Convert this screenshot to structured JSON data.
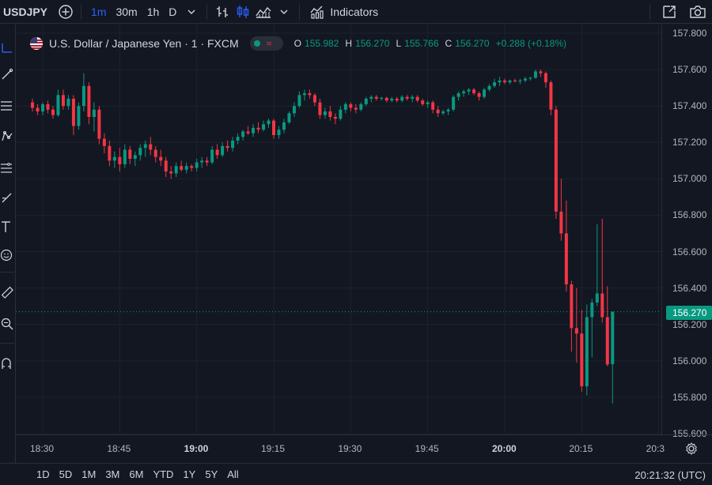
{
  "toolbar": {
    "symbol": "USDJPY",
    "intervals": [
      "1m",
      "30m",
      "1h",
      "D"
    ],
    "active_interval": "1m",
    "indicators_label": "Indicators"
  },
  "legend": {
    "title": "U.S. Dollar / Japanese Yen · 1 · FXCM",
    "open_key": "O",
    "open": "155.982",
    "high_key": "H",
    "high": "156.270",
    "low_key": "L",
    "low": "155.766",
    "close_key": "C",
    "close": "156.270",
    "change": "+0.288 (+0.18%)"
  },
  "price_scale": {
    "labels": [
      "157.800",
      "157.600",
      "157.400",
      "157.200",
      "157.000",
      "156.800",
      "156.600",
      "156.400",
      "156.200",
      "156.000",
      "155.800",
      "155.600"
    ],
    "current_price": "156.270"
  },
  "time_scale": {
    "labels": [
      "18:30",
      "18:45",
      "19:00",
      "19:15",
      "19:30",
      "19:45",
      "20:00",
      "20:15",
      "20:3"
    ],
    "bold_labels": [
      "19:00",
      "20:00"
    ]
  },
  "bottom": {
    "ranges": [
      "1D",
      "5D",
      "1M",
      "3M",
      "6M",
      "YTD",
      "1Y",
      "5Y",
      "All"
    ],
    "clock": "20:21:32 (UTC)"
  },
  "colors": {
    "up": "#089981",
    "down": "#f23645",
    "background": "#131722",
    "grid": "#1e222d",
    "accent": "#2962ff"
  },
  "icons": {
    "add_symbol": "plus-circle-icon",
    "bar_style": "bars-icon",
    "candle_style": "candles-icon",
    "area_style": "area-icon",
    "indicators": "indicators-icon",
    "fullscreen": "fullscreen-icon",
    "snapshot": "camera-icon"
  },
  "chart_data": {
    "type": "candlestick",
    "symbol": "USDJPY",
    "interval": "1m",
    "ylim": [
      155.6,
      157.8
    ],
    "x_start": "18:28",
    "x_end": "20:21",
    "grid": true,
    "last_price": 156.27,
    "candles": [
      {
        "t": "18:28",
        "o": 157.42,
        "h": 157.44,
        "l": 157.37,
        "c": 157.39
      },
      {
        "t": "18:29",
        "o": 157.39,
        "h": 157.41,
        "l": 157.35,
        "c": 157.37
      },
      {
        "t": "18:30",
        "o": 157.37,
        "h": 157.42,
        "l": 157.35,
        "c": 157.41
      },
      {
        "t": "18:31",
        "o": 157.41,
        "h": 157.43,
        "l": 157.36,
        "c": 157.38
      },
      {
        "t": "18:32",
        "o": 157.38,
        "h": 157.4,
        "l": 157.33,
        "c": 157.35
      },
      {
        "t": "18:33",
        "o": 157.35,
        "h": 157.49,
        "l": 157.34,
        "c": 157.46
      },
      {
        "t": "18:34",
        "o": 157.46,
        "h": 157.49,
        "l": 157.38,
        "c": 157.4
      },
      {
        "t": "18:35",
        "o": 157.4,
        "h": 157.46,
        "l": 157.38,
        "c": 157.44
      },
      {
        "t": "18:36",
        "o": 157.44,
        "h": 157.46,
        "l": 157.24,
        "c": 157.29
      },
      {
        "t": "18:37",
        "o": 157.29,
        "h": 157.42,
        "l": 157.27,
        "c": 157.4
      },
      {
        "t": "18:38",
        "o": 157.4,
        "h": 157.58,
        "l": 157.37,
        "c": 157.51
      },
      {
        "t": "18:39",
        "o": 157.51,
        "h": 157.53,
        "l": 157.3,
        "c": 157.34
      },
      {
        "t": "18:40",
        "o": 157.34,
        "h": 157.42,
        "l": 157.26,
        "c": 157.38
      },
      {
        "t": "18:41",
        "o": 157.38,
        "h": 157.4,
        "l": 157.19,
        "c": 157.22
      },
      {
        "t": "18:42",
        "o": 157.22,
        "h": 157.25,
        "l": 157.14,
        "c": 157.18
      },
      {
        "t": "18:43",
        "o": 157.18,
        "h": 157.21,
        "l": 157.07,
        "c": 157.1
      },
      {
        "t": "18:44",
        "o": 157.1,
        "h": 157.15,
        "l": 157.06,
        "c": 157.12
      },
      {
        "t": "18:45",
        "o": 157.12,
        "h": 157.17,
        "l": 157.04,
        "c": 157.08
      },
      {
        "t": "18:46",
        "o": 157.08,
        "h": 157.19,
        "l": 157.06,
        "c": 157.16
      },
      {
        "t": "18:47",
        "o": 157.16,
        "h": 157.18,
        "l": 157.08,
        "c": 157.11
      },
      {
        "t": "18:48",
        "o": 157.11,
        "h": 157.15,
        "l": 157.07,
        "c": 157.13
      },
      {
        "t": "18:49",
        "o": 157.13,
        "h": 157.19,
        "l": 157.1,
        "c": 157.17
      },
      {
        "t": "18:50",
        "o": 157.17,
        "h": 157.21,
        "l": 157.12,
        "c": 157.19
      },
      {
        "t": "18:51",
        "o": 157.19,
        "h": 157.23,
        "l": 157.13,
        "c": 157.16
      },
      {
        "t": "18:52",
        "o": 157.16,
        "h": 157.18,
        "l": 157.09,
        "c": 157.12
      },
      {
        "t": "18:53",
        "o": 157.12,
        "h": 157.16,
        "l": 157.07,
        "c": 157.1
      },
      {
        "t": "18:54",
        "o": 157.1,
        "h": 157.12,
        "l": 157.01,
        "c": 157.04
      },
      {
        "t": "18:55",
        "o": 157.04,
        "h": 157.07,
        "l": 157.0,
        "c": 157.03
      },
      {
        "t": "18:56",
        "o": 157.03,
        "h": 157.09,
        "l": 157.01,
        "c": 157.07
      },
      {
        "t": "18:57",
        "o": 157.07,
        "h": 157.1,
        "l": 157.04,
        "c": 157.05
      },
      {
        "t": "18:58",
        "o": 157.05,
        "h": 157.09,
        "l": 157.03,
        "c": 157.07
      },
      {
        "t": "18:59",
        "o": 157.07,
        "h": 157.08,
        "l": 157.04,
        "c": 157.06
      },
      {
        "t": "19:00",
        "o": 157.06,
        "h": 157.11,
        "l": 157.04,
        "c": 157.09
      },
      {
        "t": "19:01",
        "o": 157.09,
        "h": 157.12,
        "l": 157.06,
        "c": 157.1
      },
      {
        "t": "19:02",
        "o": 157.1,
        "h": 157.12,
        "l": 157.07,
        "c": 157.09
      },
      {
        "t": "19:03",
        "o": 157.09,
        "h": 157.18,
        "l": 157.08,
        "c": 157.16
      },
      {
        "t": "19:04",
        "o": 157.16,
        "h": 157.19,
        "l": 157.11,
        "c": 157.13
      },
      {
        "t": "19:05",
        "o": 157.13,
        "h": 157.2,
        "l": 157.12,
        "c": 157.18
      },
      {
        "t": "19:06",
        "o": 157.18,
        "h": 157.21,
        "l": 157.15,
        "c": 157.17
      },
      {
        "t": "19:07",
        "o": 157.17,
        "h": 157.23,
        "l": 157.15,
        "c": 157.21
      },
      {
        "t": "19:08",
        "o": 157.21,
        "h": 157.25,
        "l": 157.19,
        "c": 157.23
      },
      {
        "t": "19:09",
        "o": 157.23,
        "h": 157.27,
        "l": 157.21,
        "c": 157.26
      },
      {
        "t": "19:10",
        "o": 157.26,
        "h": 157.29,
        "l": 157.24,
        "c": 157.25
      },
      {
        "t": "19:11",
        "o": 157.25,
        "h": 157.3,
        "l": 157.23,
        "c": 157.28
      },
      {
        "t": "19:12",
        "o": 157.28,
        "h": 157.31,
        "l": 157.25,
        "c": 157.27
      },
      {
        "t": "19:13",
        "o": 157.27,
        "h": 157.32,
        "l": 157.26,
        "c": 157.3
      },
      {
        "t": "19:14",
        "o": 157.3,
        "h": 157.33,
        "l": 157.28,
        "c": 157.32
      },
      {
        "t": "19:15",
        "o": 157.32,
        "h": 157.33,
        "l": 157.22,
        "c": 157.24
      },
      {
        "t": "19:16",
        "o": 157.24,
        "h": 157.29,
        "l": 157.22,
        "c": 157.27
      },
      {
        "t": "19:17",
        "o": 157.27,
        "h": 157.33,
        "l": 157.25,
        "c": 157.31
      },
      {
        "t": "19:18",
        "o": 157.31,
        "h": 157.37,
        "l": 157.3,
        "c": 157.36
      },
      {
        "t": "19:19",
        "o": 157.36,
        "h": 157.42,
        "l": 157.34,
        "c": 157.4
      },
      {
        "t": "19:20",
        "o": 157.4,
        "h": 157.48,
        "l": 157.39,
        "c": 157.46
      },
      {
        "t": "19:21",
        "o": 157.46,
        "h": 157.49,
        "l": 157.43,
        "c": 157.47
      },
      {
        "t": "19:22",
        "o": 157.47,
        "h": 157.49,
        "l": 157.44,
        "c": 157.46
      },
      {
        "t": "19:23",
        "o": 157.46,
        "h": 157.47,
        "l": 157.4,
        "c": 157.42
      },
      {
        "t": "19:24",
        "o": 157.42,
        "h": 157.44,
        "l": 157.33,
        "c": 157.35
      },
      {
        "t": "19:25",
        "o": 157.35,
        "h": 157.39,
        "l": 157.33,
        "c": 157.37
      },
      {
        "t": "19:26",
        "o": 157.37,
        "h": 157.4,
        "l": 157.32,
        "c": 157.34
      },
      {
        "t": "19:27",
        "o": 157.34,
        "h": 157.36,
        "l": 157.3,
        "c": 157.33
      },
      {
        "t": "19:28",
        "o": 157.33,
        "h": 157.4,
        "l": 157.32,
        "c": 157.38
      },
      {
        "t": "19:29",
        "o": 157.38,
        "h": 157.42,
        "l": 157.36,
        "c": 157.41
      },
      {
        "t": "19:30",
        "o": 157.41,
        "h": 157.42,
        "l": 157.37,
        "c": 157.39
      },
      {
        "t": "19:31",
        "o": 157.39,
        "h": 157.41,
        "l": 157.36,
        "c": 157.38
      },
      {
        "t": "19:32",
        "o": 157.38,
        "h": 157.42,
        "l": 157.37,
        "c": 157.41
      },
      {
        "t": "19:33",
        "o": 157.41,
        "h": 157.45,
        "l": 157.4,
        "c": 157.44
      },
      {
        "t": "19:34",
        "o": 157.44,
        "h": 157.46,
        "l": 157.42,
        "c": 157.45
      },
      {
        "t": "19:35",
        "o": 157.45,
        "h": 157.46,
        "l": 157.43,
        "c": 157.44
      },
      {
        "t": "19:36",
        "o": 157.44,
        "h": 157.45,
        "l": 157.43,
        "c": 157.445
      },
      {
        "t": "19:37",
        "o": 157.445,
        "h": 157.45,
        "l": 157.42,
        "c": 157.43
      },
      {
        "t": "19:38",
        "o": 157.43,
        "h": 157.45,
        "l": 157.42,
        "c": 157.44
      },
      {
        "t": "19:39",
        "o": 157.44,
        "h": 157.45,
        "l": 157.42,
        "c": 157.43
      },
      {
        "t": "19:40",
        "o": 157.43,
        "h": 157.46,
        "l": 157.42,
        "c": 157.45
      },
      {
        "t": "19:41",
        "o": 157.45,
        "h": 157.46,
        "l": 157.43,
        "c": 157.44
      },
      {
        "t": "19:42",
        "o": 157.44,
        "h": 157.46,
        "l": 157.42,
        "c": 157.45
      },
      {
        "t": "19:43",
        "o": 157.45,
        "h": 157.46,
        "l": 157.42,
        "c": 157.43
      },
      {
        "t": "19:44",
        "o": 157.43,
        "h": 157.44,
        "l": 157.4,
        "c": 157.41
      },
      {
        "t": "19:45",
        "o": 157.41,
        "h": 157.43,
        "l": 157.39,
        "c": 157.42
      },
      {
        "t": "19:46",
        "o": 157.42,
        "h": 157.43,
        "l": 157.36,
        "c": 157.38
      },
      {
        "t": "19:47",
        "o": 157.38,
        "h": 157.4,
        "l": 157.34,
        "c": 157.36
      },
      {
        "t": "19:48",
        "o": 157.36,
        "h": 157.38,
        "l": 157.35,
        "c": 157.37
      },
      {
        "t": "19:49",
        "o": 157.37,
        "h": 157.39,
        "l": 157.35,
        "c": 157.38
      },
      {
        "t": "19:50",
        "o": 157.38,
        "h": 157.46,
        "l": 157.37,
        "c": 157.45
      },
      {
        "t": "19:51",
        "o": 157.45,
        "h": 157.48,
        "l": 157.43,
        "c": 157.47
      },
      {
        "t": "19:52",
        "o": 157.47,
        "h": 157.49,
        "l": 157.45,
        "c": 157.48
      },
      {
        "t": "19:53",
        "o": 157.48,
        "h": 157.5,
        "l": 157.46,
        "c": 157.49
      },
      {
        "t": "19:54",
        "o": 157.49,
        "h": 157.5,
        "l": 157.46,
        "c": 157.47
      },
      {
        "t": "19:55",
        "o": 157.47,
        "h": 157.48,
        "l": 157.43,
        "c": 157.45
      },
      {
        "t": "19:56",
        "o": 157.45,
        "h": 157.5,
        "l": 157.44,
        "c": 157.49
      },
      {
        "t": "19:57",
        "o": 157.49,
        "h": 157.52,
        "l": 157.48,
        "c": 157.51
      },
      {
        "t": "19:58",
        "o": 157.51,
        "h": 157.55,
        "l": 157.5,
        "c": 157.53
      },
      {
        "t": "19:59",
        "o": 157.53,
        "h": 157.56,
        "l": 157.51,
        "c": 157.54
      },
      {
        "t": "20:00",
        "o": 157.54,
        "h": 157.55,
        "l": 157.52,
        "c": 157.53
      },
      {
        "t": "20:01",
        "o": 157.53,
        "h": 157.545,
        "l": 157.52,
        "c": 157.54
      },
      {
        "t": "20:02",
        "o": 157.54,
        "h": 157.55,
        "l": 157.53,
        "c": 157.535
      },
      {
        "t": "20:03",
        "o": 157.535,
        "h": 157.55,
        "l": 157.52,
        "c": 157.54
      },
      {
        "t": "20:04",
        "o": 157.54,
        "h": 157.56,
        "l": 157.53,
        "c": 157.55
      },
      {
        "t": "20:05",
        "o": 157.55,
        "h": 157.56,
        "l": 157.54,
        "c": 157.555
      },
      {
        "t": "20:06",
        "o": 157.555,
        "h": 157.6,
        "l": 157.55,
        "c": 157.59
      },
      {
        "t": "20:07",
        "o": 157.59,
        "h": 157.6,
        "l": 157.56,
        "c": 157.58
      },
      {
        "t": "20:08",
        "o": 157.58,
        "h": 157.59,
        "l": 157.5,
        "c": 157.53
      },
      {
        "t": "20:09",
        "o": 157.53,
        "h": 157.54,
        "l": 157.35,
        "c": 157.38
      },
      {
        "t": "20:10",
        "o": 157.38,
        "h": 157.4,
        "l": 156.78,
        "c": 156.82
      },
      {
        "t": "20:11",
        "o": 156.82,
        "h": 157.0,
        "l": 156.66,
        "c": 156.7
      },
      {
        "t": "20:12",
        "o": 156.7,
        "h": 156.88,
        "l": 156.38,
        "c": 156.42
      },
      {
        "t": "20:13",
        "o": 156.42,
        "h": 156.44,
        "l": 156.05,
        "c": 156.18
      },
      {
        "t": "20:14",
        "o": 156.18,
        "h": 156.4,
        "l": 155.99,
        "c": 156.15
      },
      {
        "t": "20:15",
        "o": 156.15,
        "h": 156.28,
        "l": 155.83,
        "c": 155.86
      },
      {
        "t": "20:16",
        "o": 155.86,
        "h": 156.31,
        "l": 155.81,
        "c": 156.24
      },
      {
        "t": "20:17",
        "o": 156.24,
        "h": 156.34,
        "l": 156.02,
        "c": 156.32
      },
      {
        "t": "20:18",
        "o": 156.32,
        "h": 156.75,
        "l": 156.3,
        "c": 156.37
      },
      {
        "t": "20:19",
        "o": 156.37,
        "h": 156.78,
        "l": 156.21,
        "c": 156.24
      },
      {
        "t": "20:20",
        "o": 156.24,
        "h": 156.41,
        "l": 155.97,
        "c": 155.98
      },
      {
        "t": "20:21",
        "o": 155.982,
        "h": 156.27,
        "l": 155.766,
        "c": 156.27
      }
    ]
  }
}
